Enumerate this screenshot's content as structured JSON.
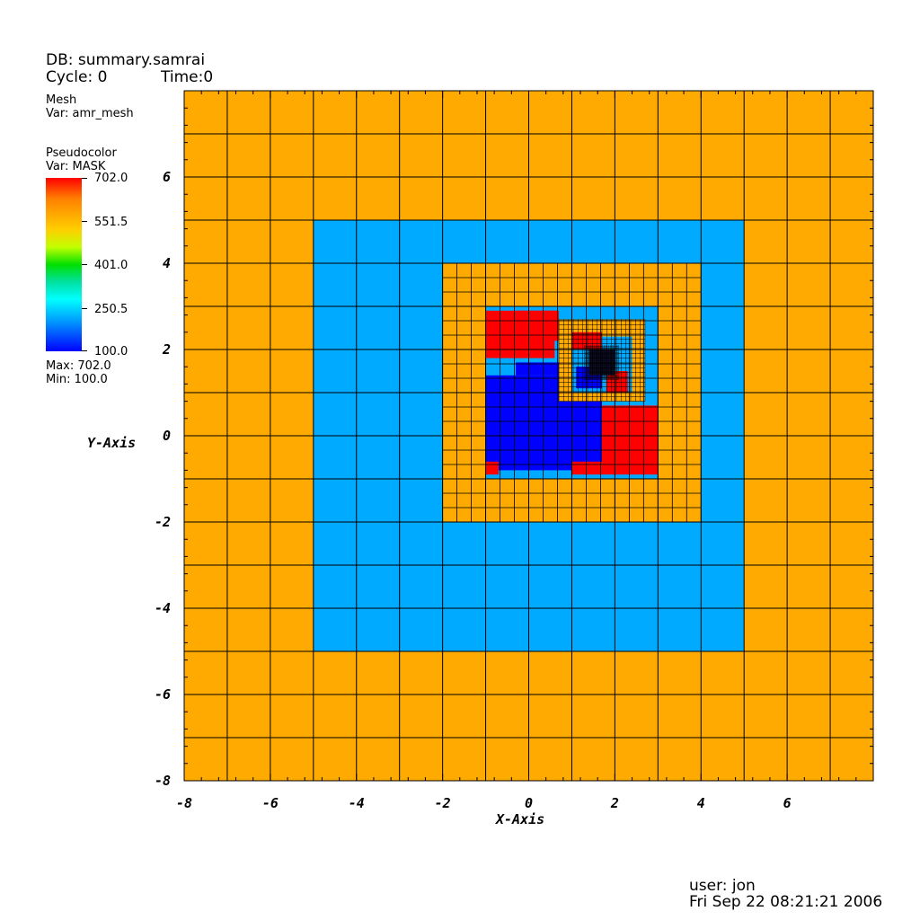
{
  "header": {
    "db": "DB: summary.samrai",
    "cycle": "Cycle: 0",
    "time": "Time:0"
  },
  "mesh_legend": {
    "title": "Mesh",
    "var": "Var: amr_mesh"
  },
  "pseudocolor_legend": {
    "title": "Pseudocolor",
    "var": "Var: MASK",
    "ticks": [
      "702.0",
      "551.5",
      "401.0",
      "250.5",
      "100.0"
    ],
    "max": "Max:  702.0",
    "min": "Min:  100.0"
  },
  "footer": {
    "user": "user: jon",
    "date": "Fri Sep 22 08:21:21 2006"
  },
  "colors": {
    "orange": "#ffaa00",
    "lightblue": "#00aaff",
    "red": "#ff0000",
    "blue": "#0000ff",
    "grid": "#000000"
  },
  "chart_data": {
    "type": "heatmap",
    "xlabel": "X-Axis",
    "ylabel": "Y-Axis",
    "xlim": [
      -8,
      8
    ],
    "ylim": [
      -8,
      8
    ],
    "xticks": [
      -8,
      -6,
      -4,
      -2,
      0,
      2,
      4,
      6
    ],
    "yticks": [
      6,
      4,
      2,
      0,
      -2,
      -4,
      -6,
      -8
    ],
    "levels": [
      {
        "level": 0,
        "extent": [
          -8,
          8,
          -8,
          8
        ],
        "cell": 1,
        "color": "orange"
      },
      {
        "level": 1,
        "extent": [
          -5,
          5,
          -5,
          5
        ],
        "cell": 1,
        "color": "lightblue"
      },
      {
        "level": 2,
        "extent": [
          -2,
          4,
          -2,
          4
        ],
        "cell": 0.333,
        "color": "orange"
      },
      {
        "level": 3,
        "extent": [
          -1,
          3,
          -1,
          3
        ],
        "cell": 0.333,
        "color": "lightblue"
      },
      {
        "level": 4,
        "extent": [
          0.7,
          2.7,
          0.8,
          2.7
        ],
        "cell": 0.111,
        "color": "orange"
      }
    ],
    "mask_regions": [
      {
        "color": "red",
        "x": [
          -1,
          0.6
        ],
        "y": [
          1.8,
          2.9
        ]
      },
      {
        "color": "red",
        "x": [
          -0.3,
          0.7
        ],
        "y": [
          2.2,
          2.9
        ]
      },
      {
        "color": "blue",
        "x": [
          -1,
          1.7
        ],
        "y": [
          -0.8,
          1.4
        ]
      },
      {
        "color": "blue",
        "x": [
          -0.3,
          0.7
        ],
        "y": [
          1.4,
          1.7
        ]
      },
      {
        "color": "red",
        "x": [
          1.7,
          3
        ],
        "y": [
          -0.9,
          0.7
        ]
      },
      {
        "color": "red",
        "x": [
          1,
          1.7
        ],
        "y": [
          -0.9,
          -0.6
        ]
      },
      {
        "color": "red",
        "x": [
          -1,
          -0.7
        ],
        "y": [
          -0.9,
          -0.6
        ]
      },
      {
        "color": "red",
        "x": [
          1,
          1.7
        ],
        "y": [
          2,
          2.4
        ]
      },
      {
        "color": "blue",
        "x": [
          1.1,
          1.7
        ],
        "y": [
          1.1,
          1.6
        ]
      },
      {
        "color": "red",
        "x": [
          1.8,
          2.3
        ],
        "y": [
          1.0,
          1.5
        ]
      }
    ]
  }
}
